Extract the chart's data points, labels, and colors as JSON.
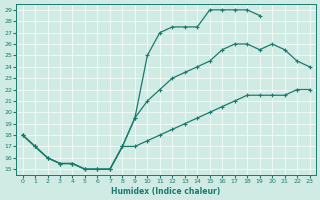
{
  "xlabel": "Humidex (Indice chaleur)",
  "bg_color": "#d0ebe4",
  "line_color": "#1a7a6e",
  "xlim": [
    -0.5,
    23.5
  ],
  "ylim": [
    14.5,
    29.5
  ],
  "xticks": [
    0,
    1,
    2,
    3,
    4,
    5,
    6,
    7,
    8,
    9,
    10,
    11,
    12,
    13,
    14,
    15,
    16,
    17,
    18,
    19,
    20,
    21,
    22,
    23
  ],
  "yticks": [
    15,
    16,
    17,
    18,
    19,
    20,
    21,
    22,
    23,
    24,
    25,
    26,
    27,
    28,
    29
  ],
  "curve1_x": [
    0,
    1,
    2,
    3,
    4,
    5,
    6,
    7,
    8,
    9,
    10,
    11,
    12,
    13,
    14,
    15,
    16,
    17,
    18,
    19
  ],
  "curve1_y": [
    18,
    17,
    16,
    15.5,
    15.5,
    15,
    15,
    15,
    17,
    19.5,
    25,
    27,
    27.5,
    27.5,
    27.5,
    29,
    29,
    29,
    29,
    28.5
  ],
  "curve2_x": [
    0,
    1,
    2,
    3,
    4,
    5,
    6,
    7,
    8,
    9,
    10,
    11,
    12,
    13,
    14,
    15,
    16,
    17,
    18,
    19,
    20,
    21,
    22,
    23
  ],
  "curve2_y": [
    18,
    17,
    16,
    15.5,
    15.5,
    15,
    15,
    15,
    17,
    19.5,
    21,
    22,
    23,
    23.5,
    24,
    24.5,
    25.5,
    26,
    26,
    25.5,
    26,
    25.5,
    24.5,
    24
  ],
  "curve3_x": [
    0,
    1,
    2,
    3,
    4,
    5,
    6,
    7,
    8,
    9,
    10,
    11,
    12,
    13,
    14,
    15,
    16,
    17,
    18,
    19,
    20,
    21,
    22,
    23
  ],
  "curve3_y": [
    18,
    17,
    16,
    15.5,
    15.5,
    15,
    15,
    15,
    17,
    17,
    17.5,
    18,
    18.5,
    19,
    19.5,
    20,
    20.5,
    21,
    21.5,
    21.5,
    21.5,
    21.5,
    22,
    22
  ]
}
